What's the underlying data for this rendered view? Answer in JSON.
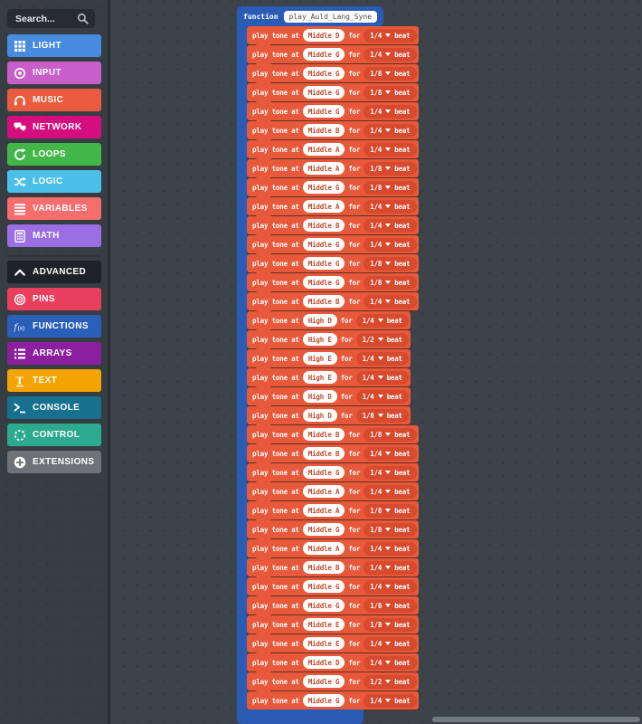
{
  "sidebar": {
    "search": {
      "placeholder": "Search..."
    },
    "categories": [
      {
        "label": "LIGHT",
        "color": "#478be0",
        "icon": "grid-icon"
      },
      {
        "label": "INPUT",
        "color": "#c75ec9",
        "icon": "target-icon"
      },
      {
        "label": "MUSIC",
        "color": "#ea5b3f",
        "icon": "headphones-icon"
      },
      {
        "label": "NETWORK",
        "color": "#d40e7e",
        "icon": "chat-icon"
      },
      {
        "label": "LOOPS",
        "color": "#43b64a",
        "icon": "loop-icon"
      },
      {
        "label": "LOGIC",
        "color": "#4ac0e8",
        "icon": "shuffle-icon"
      },
      {
        "label": "VARIABLES",
        "color": "#f56d6d",
        "icon": "lines-icon"
      },
      {
        "label": "MATH",
        "color": "#9c6ee4",
        "icon": "calculator-icon"
      },
      {
        "label": "ADVANCED",
        "color": "#1c2227",
        "icon": "chevron-up-icon"
      },
      {
        "label": "PINS",
        "color": "#e93f5e",
        "icon": "pin-target-icon"
      },
      {
        "label": "FUNCTIONS",
        "color": "#2b5eb9",
        "icon": "function-icon"
      },
      {
        "label": "ARRAYS",
        "color": "#8c1f9e",
        "icon": "list-icon"
      },
      {
        "label": "TEXT",
        "color": "#f3a400",
        "icon": "text-icon"
      },
      {
        "label": "CONSOLE",
        "color": "#17708d",
        "icon": "terminal-icon"
      },
      {
        "label": "CONTROL",
        "color": "#2caa8e",
        "icon": "dashed-circle-icon"
      },
      {
        "label": "EXTENSIONS",
        "color": "#6d7376",
        "icon": "plus-circle-icon"
      }
    ]
  },
  "function_block": {
    "keyword": "function",
    "name": "play_Auld_Lang_Syne",
    "color": "#2a5cb5"
  },
  "tone_blocks": {
    "prefix": "play tone at",
    "for_label": "for",
    "beat_label": "beat",
    "block_color": "#e8593c",
    "dropdown_color": "#d74a2e",
    "note_text_color": "#bc4b2f",
    "rows": [
      {
        "note": "Middle D",
        "beat": "1/4"
      },
      {
        "note": "Middle G",
        "beat": "1/4"
      },
      {
        "note": "Middle G",
        "beat": "1/8"
      },
      {
        "note": "Middle G",
        "beat": "1/8"
      },
      {
        "note": "Middle G",
        "beat": "1/4"
      },
      {
        "note": "Middle B",
        "beat": "1/4"
      },
      {
        "note": "Middle A",
        "beat": "1/4"
      },
      {
        "note": "Middle A",
        "beat": "1/8"
      },
      {
        "note": "Middle G",
        "beat": "1/8"
      },
      {
        "note": "Middle A",
        "beat": "1/4"
      },
      {
        "note": "Middle B",
        "beat": "1/4"
      },
      {
        "note": "Middle G",
        "beat": "1/4"
      },
      {
        "note": "Middle G",
        "beat": "1/8"
      },
      {
        "note": "Middle G",
        "beat": "1/8"
      },
      {
        "note": "Middle B",
        "beat": "1/4"
      },
      {
        "note": "High D",
        "beat": "1/4"
      },
      {
        "note": "High E",
        "beat": "1/2"
      },
      {
        "note": "High E",
        "beat": "1/4"
      },
      {
        "note": "High E",
        "beat": "1/4"
      },
      {
        "note": "High D",
        "beat": "1/4"
      },
      {
        "note": "High D",
        "beat": "1/8"
      },
      {
        "note": "Middle B",
        "beat": "1/8"
      },
      {
        "note": "Middle B",
        "beat": "1/4"
      },
      {
        "note": "Middle G",
        "beat": "1/4"
      },
      {
        "note": "Middle A",
        "beat": "1/4"
      },
      {
        "note": "Middle A",
        "beat": "1/8"
      },
      {
        "note": "Middle G",
        "beat": "1/8"
      },
      {
        "note": "Middle A",
        "beat": "1/4"
      },
      {
        "note": "Middle B",
        "beat": "1/4"
      },
      {
        "note": "Middle G",
        "beat": "1/4"
      },
      {
        "note": "Middle G",
        "beat": "1/8"
      },
      {
        "note": "Middle E",
        "beat": "1/8"
      },
      {
        "note": "Middle E",
        "beat": "1/4"
      },
      {
        "note": "Middle D",
        "beat": "1/4"
      },
      {
        "note": "Middle G",
        "beat": "1/2"
      },
      {
        "note": "Middle G",
        "beat": "1/4"
      }
    ]
  }
}
